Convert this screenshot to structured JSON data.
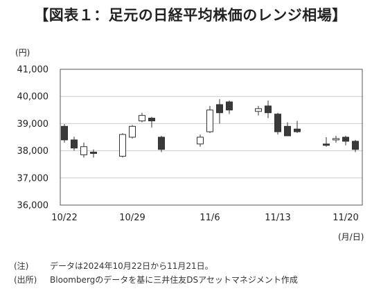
{
  "title": "【図表１：足元の日経平均株価のレンジ相場】",
  "notes": [
    {
      "label": "(注)",
      "text": "データは2024年10月22日から11月21日。"
    },
    {
      "label": "(出所)",
      "text": "Bloombergのデータを基に三井住友DSアセットマネジメント作成"
    }
  ],
  "chart_data": {
    "type": "candlestick",
    "title": "【図表１：足元の日経平均株価のレンジ相場】",
    "y_unit": "(円)",
    "x_unit": "(月/日)",
    "ylim": [
      36000,
      41000
    ],
    "y_ticks": [
      "36,000",
      "37,000",
      "38,000",
      "39,000",
      "40,000",
      "41,000"
    ],
    "x_tick_labels": [
      {
        "label": "10/22",
        "date": "2024-10-22"
      },
      {
        "label": "10/29",
        "date": "2024-10-29"
      },
      {
        "label": "11/6",
        "date": "2024-11-06"
      },
      {
        "label": "11/13",
        "date": "2024-11-13"
      },
      {
        "label": "11/20",
        "date": "2024-11-20"
      }
    ],
    "grid": "horizontal",
    "colors": {
      "up_fill": "#ffffff",
      "down_fill": "#3a3a3a",
      "line": "#333333",
      "grid": "#cccccc"
    },
    "candles": [
      {
        "date": "2024-10-22",
        "open": 38900,
        "high": 38980,
        "low": 38300,
        "close": 38400
      },
      {
        "date": "2024-10-23",
        "open": 38400,
        "high": 38520,
        "low": 38000,
        "close": 38100
      },
      {
        "date": "2024-10-24",
        "open": 37850,
        "high": 38300,
        "low": 37750,
        "close": 38150
      },
      {
        "date": "2024-10-25",
        "open": 37950,
        "high": 38050,
        "low": 37750,
        "close": 37900
      },
      {
        "date": "2024-10-28",
        "open": 37800,
        "high": 38650,
        "low": 37750,
        "close": 38600
      },
      {
        "date": "2024-10-29",
        "open": 38500,
        "high": 38950,
        "low": 38450,
        "close": 38900
      },
      {
        "date": "2024-10-30",
        "open": 39100,
        "high": 39400,
        "low": 39050,
        "close": 39300
      },
      {
        "date": "2024-10-31",
        "open": 39200,
        "high": 39250,
        "low": 38850,
        "close": 39100
      },
      {
        "date": "2024-11-01",
        "open": 38500,
        "high": 38550,
        "low": 37950,
        "close": 38050
      },
      {
        "date": "2024-11-05",
        "open": 38250,
        "high": 38600,
        "low": 38150,
        "close": 38500
      },
      {
        "date": "2024-11-06",
        "open": 38700,
        "high": 39650,
        "low": 38650,
        "close": 39500
      },
      {
        "date": "2024-11-07",
        "open": 39700,
        "high": 39900,
        "low": 39000,
        "close": 39400
      },
      {
        "date": "2024-11-08",
        "open": 39800,
        "high": 39850,
        "low": 39350,
        "close": 39500
      },
      {
        "date": "2024-11-11",
        "open": 39450,
        "high": 39650,
        "low": 39300,
        "close": 39550
      },
      {
        "date": "2024-11-12",
        "open": 39650,
        "high": 39850,
        "low": 39200,
        "close": 39400
      },
      {
        "date": "2024-11-13",
        "open": 39350,
        "high": 39400,
        "low": 38600,
        "close": 38700
      },
      {
        "date": "2024-11-14",
        "open": 38900,
        "high": 39050,
        "low": 38550,
        "close": 38550
      },
      {
        "date": "2024-11-15",
        "open": 38800,
        "high": 39100,
        "low": 38650,
        "close": 38700
      },
      {
        "date": "2024-11-18",
        "open": 38250,
        "high": 38500,
        "low": 38150,
        "close": 38200
      },
      {
        "date": "2024-11-19",
        "open": 38400,
        "high": 38550,
        "low": 38300,
        "close": 38450
      },
      {
        "date": "2024-11-20",
        "open": 38500,
        "high": 38550,
        "low": 38200,
        "close": 38350
      },
      {
        "date": "2024-11-21",
        "open": 38350,
        "high": 38400,
        "low": 37950,
        "close": 38050
      }
    ]
  }
}
